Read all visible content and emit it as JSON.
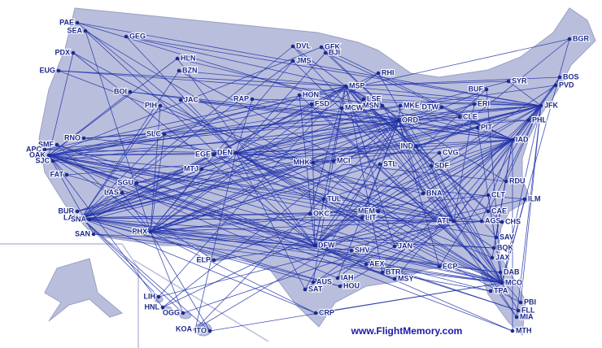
{
  "airports": [
    "PAE",
    "SEA",
    "GEG",
    "PDX",
    "EUG",
    "HLN",
    "BZN",
    "BOI",
    "PIH",
    "JAC",
    "SLC",
    "RNO",
    "SMF",
    "APC",
    "OAK",
    "SJC",
    "FAT",
    "EGE",
    "DEN",
    "MTJ",
    "SGU",
    "LAS",
    "BUR",
    "LAX",
    "SNA",
    "SAN",
    "PHX",
    "ELP",
    "DVL",
    "GFK",
    "JMS",
    "BJI",
    "RHI",
    "RAP",
    "HON",
    "MSP",
    "FSD",
    "LSE",
    "MCW",
    "MSN",
    "MKE",
    "ORD",
    "DTW",
    "MHK",
    "MCI",
    "STL",
    "IND",
    "CVG",
    "SDF",
    "TUL",
    "OKC",
    "LIT",
    "MEM",
    "BNA",
    "ATL",
    "DFW",
    "SHV",
    "JAN",
    "AEX",
    "BTR",
    "MSY",
    "AUS",
    "IAH",
    "HOU",
    "SAT",
    "CRP",
    "ECP",
    "BUF",
    "SYR",
    "BGR",
    "BOS",
    "PVD",
    "JFK",
    "PHL",
    "ERI",
    "CLE",
    "PIT",
    "IAD",
    "CLT",
    "RDU",
    "ILM",
    "CAE",
    "AGS",
    "CHS",
    "SAV",
    "BQK",
    "JAX",
    "DAB",
    "MCO",
    "TPA",
    "PBI",
    "FLL",
    "MIA",
    "MTH",
    "LIH",
    "HNL",
    "OGG",
    "KOA",
    "ITO"
  ],
  "footer": "www.FlightMemory.com"
}
